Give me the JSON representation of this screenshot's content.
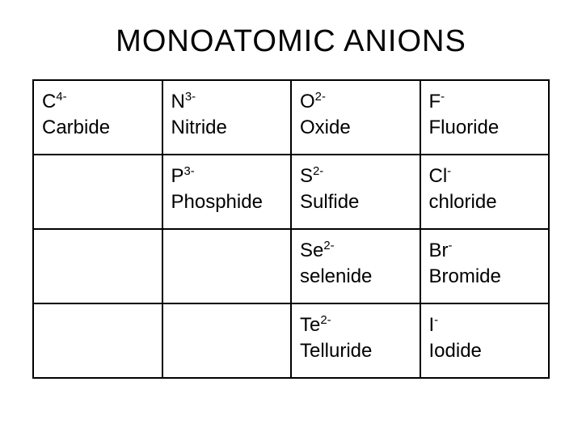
{
  "title": "MONOATOMIC ANIONS",
  "table": {
    "border_color": "#000000",
    "text_color": "#000000",
    "background_color": "#ffffff",
    "font_size_pt": 18,
    "columns": 4,
    "rows": [
      [
        {
          "element": "C",
          "charge": "4-",
          "name": "Carbide"
        },
        {
          "element": "N",
          "charge": "3-",
          "name": "Nitride"
        },
        {
          "element": "O",
          "charge": "2-",
          "name": "Oxide"
        },
        {
          "element": "F",
          "charge": "-",
          "name": "Fluoride"
        }
      ],
      [
        null,
        {
          "element": "P",
          "charge": "3-",
          "name": "Phosphide"
        },
        {
          "element": "S",
          "charge": "2-",
          "name": "Sulfide"
        },
        {
          "element": "Cl",
          "charge": "-",
          "name": "chloride"
        }
      ],
      [
        null,
        null,
        {
          "element": "Se",
          "charge": "2-",
          "name": "selenide"
        },
        {
          "element": "Br",
          "charge": "-",
          "name": "Bromide"
        }
      ],
      [
        null,
        null,
        {
          "element": "Te",
          "charge": "2-",
          "name": "Telluride"
        },
        {
          "element": "I",
          "charge": "-",
          "name": "Iodide"
        }
      ]
    ]
  }
}
